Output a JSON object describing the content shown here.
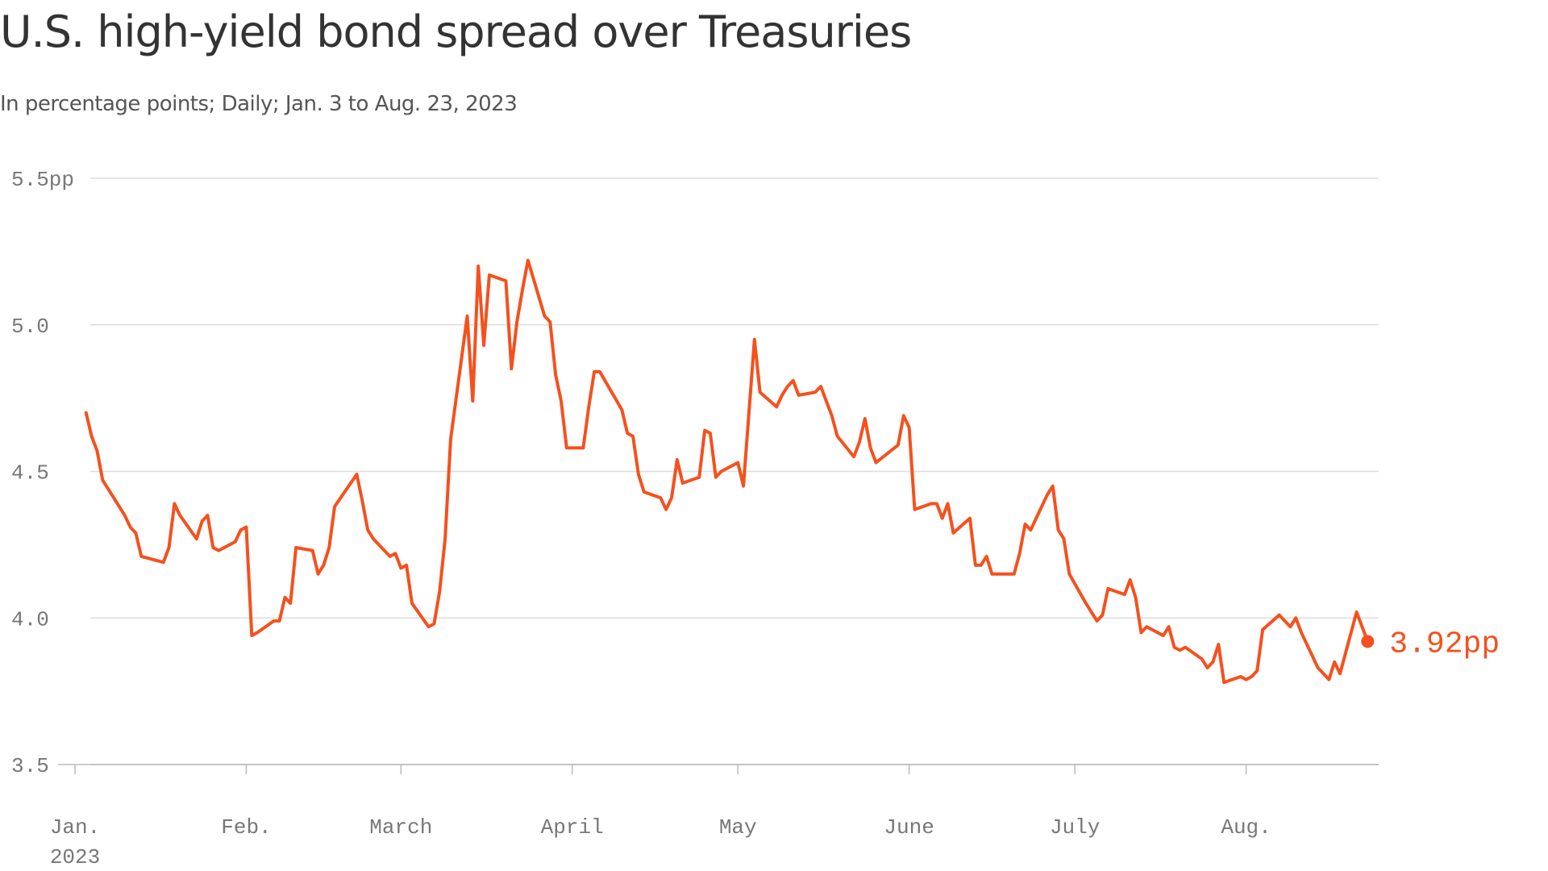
{
  "chart_data": {
    "type": "line",
    "title": "U.S. high-yield bond spread over Treasuries",
    "subtitle": "In percentage points; Daily; Jan. 3 to Aug. 23, 2023",
    "x": [
      "2023-01-03",
      "2023-01-04",
      "2023-01-05",
      "2023-01-06",
      "2023-01-09",
      "2023-01-10",
      "2023-01-11",
      "2023-01-12",
      "2023-01-13",
      "2023-01-17",
      "2023-01-18",
      "2023-01-19",
      "2023-01-20",
      "2023-01-23",
      "2023-01-24",
      "2023-01-25",
      "2023-01-26",
      "2023-01-27",
      "2023-01-30",
      "2023-01-31",
      "2023-02-01",
      "2023-02-02",
      "2023-02-03",
      "2023-02-06",
      "2023-02-07",
      "2023-02-08",
      "2023-02-09",
      "2023-02-10",
      "2023-02-13",
      "2023-02-14",
      "2023-02-15",
      "2023-02-16",
      "2023-02-17",
      "2023-02-21",
      "2023-02-22",
      "2023-02-23",
      "2023-02-24",
      "2023-02-27",
      "2023-02-28",
      "2023-03-01",
      "2023-03-02",
      "2023-03-03",
      "2023-03-06",
      "2023-03-07",
      "2023-03-08",
      "2023-03-09",
      "2023-03-10",
      "2023-03-13",
      "2023-03-14",
      "2023-03-15",
      "2023-03-16",
      "2023-03-17",
      "2023-03-20",
      "2023-03-21",
      "2023-03-22",
      "2023-03-23",
      "2023-03-24",
      "2023-03-27",
      "2023-03-28",
      "2023-03-29",
      "2023-03-30",
      "2023-03-31",
      "2023-04-03",
      "2023-04-04",
      "2023-04-05",
      "2023-04-06",
      "2023-04-10",
      "2023-04-11",
      "2023-04-12",
      "2023-04-13",
      "2023-04-14",
      "2023-04-17",
      "2023-04-18",
      "2023-04-19",
      "2023-04-20",
      "2023-04-21",
      "2023-04-24",
      "2023-04-25",
      "2023-04-26",
      "2023-04-27",
      "2023-04-28",
      "2023-05-01",
      "2023-05-02",
      "2023-05-03",
      "2023-05-04",
      "2023-05-05",
      "2023-05-08",
      "2023-05-09",
      "2023-05-10",
      "2023-05-11",
      "2023-05-12",
      "2023-05-15",
      "2023-05-16",
      "2023-05-17",
      "2023-05-18",
      "2023-05-19",
      "2023-05-22",
      "2023-05-23",
      "2023-05-24",
      "2023-05-25",
      "2023-05-26",
      "2023-05-30",
      "2023-05-31",
      "2023-06-01",
      "2023-06-02",
      "2023-06-05",
      "2023-06-06",
      "2023-06-07",
      "2023-06-08",
      "2023-06-09",
      "2023-06-12",
      "2023-06-13",
      "2023-06-14",
      "2023-06-15",
      "2023-06-16",
      "2023-06-20",
      "2023-06-21",
      "2023-06-22",
      "2023-06-23",
      "2023-06-26",
      "2023-06-27",
      "2023-06-28",
      "2023-06-29",
      "2023-06-30",
      "2023-07-03",
      "2023-07-05",
      "2023-07-06",
      "2023-07-07",
      "2023-07-10",
      "2023-07-11",
      "2023-07-12",
      "2023-07-13",
      "2023-07-14",
      "2023-07-17",
      "2023-07-18",
      "2023-07-19",
      "2023-07-20",
      "2023-07-21",
      "2023-07-24",
      "2023-07-25",
      "2023-07-26",
      "2023-07-27",
      "2023-07-28",
      "2023-07-31",
      "2023-08-01",
      "2023-08-02",
      "2023-08-03",
      "2023-08-04",
      "2023-08-07",
      "2023-08-08",
      "2023-08-09",
      "2023-08-10",
      "2023-08-11",
      "2023-08-14",
      "2023-08-15",
      "2023-08-16",
      "2023-08-17",
      "2023-08-18",
      "2023-08-21",
      "2023-08-22",
      "2023-08-23"
    ],
    "series": [
      {
        "color": "#f4511e",
        "values": [
          4.7,
          4.62,
          4.57,
          4.47,
          4.38,
          4.35,
          4.31,
          4.29,
          4.21,
          4.19,
          4.24,
          4.39,
          4.35,
          4.27,
          4.33,
          4.35,
          4.24,
          4.23,
          4.26,
          4.3,
          4.31,
          3.94,
          3.95,
          3.99,
          3.99,
          4.07,
          4.05,
          4.24,
          4.23,
          4.15,
          4.18,
          4.24,
          4.38,
          4.49,
          4.4,
          4.3,
          4.27,
          4.21,
          4.22,
          4.17,
          4.18,
          4.05,
          3.97,
          3.98,
          4.09,
          4.27,
          4.61,
          5.03,
          4.74,
          5.2,
          4.93,
          5.17,
          5.15,
          4.85,
          5.01,
          5.12,
          5.22,
          5.03,
          5.01,
          4.83,
          4.74,
          4.58,
          4.58,
          4.72,
          4.84,
          4.84,
          4.71,
          4.63,
          4.62,
          4.49,
          4.43,
          4.41,
          4.37,
          4.41,
          4.54,
          4.46,
          4.48,
          4.64,
          4.63,
          4.48,
          4.5,
          4.53,
          4.45,
          4.7,
          4.95,
          4.77,
          4.72,
          4.76,
          4.79,
          4.81,
          4.76,
          4.77,
          4.79,
          4.74,
          4.69,
          4.62,
          4.55,
          4.6,
          4.68,
          4.58,
          4.53,
          4.59,
          4.69,
          4.65,
          4.37,
          4.39,
          4.39,
          4.34,
          4.39,
          4.29,
          4.34,
          4.18,
          4.18,
          4.21,
          4.15,
          4.15,
          4.22,
          4.32,
          4.3,
          4.42,
          4.45,
          4.3,
          4.27,
          4.15,
          4.05,
          3.99,
          4.01,
          4.1,
          4.08,
          4.13,
          4.07,
          3.95,
          3.97,
          3.94,
          3.97,
          3.9,
          3.89,
          3.9,
          3.86,
          3.83,
          3.85,
          3.91,
          3.78,
          3.8,
          3.79,
          3.8,
          3.82,
          3.96,
          4.01,
          3.99,
          3.97,
          4.0,
          3.95,
          3.83,
          3.81,
          3.79,
          3.85,
          3.81,
          4.02,
          3.97,
          3.92
        ],
        "value_labels": [
          null,
          null,
          null,
          null,
          null,
          null,
          null,
          null,
          null,
          null,
          null,
          null,
          null,
          null,
          null,
          null,
          null,
          null,
          null,
          null,
          null,
          null,
          null,
          null,
          null,
          null,
          null,
          null,
          null,
          null,
          null,
          null,
          null,
          null,
          null,
          null,
          null,
          null,
          null,
          null,
          null,
          null,
          null,
          null,
          null,
          null,
          null,
          null,
          null,
          null,
          null,
          null,
          null,
          null,
          null,
          null,
          null,
          null,
          null,
          null,
          null,
          null,
          null,
          null,
          null,
          null,
          null,
          null,
          null,
          null,
          null,
          null,
          null,
          null,
          null,
          null,
          null,
          null,
          null,
          null,
          null,
          null,
          null,
          null,
          null,
          null,
          null,
          null,
          null,
          null,
          null,
          null,
          null,
          null,
          null,
          null,
          null,
          null,
          null,
          null,
          null,
          null,
          null,
          null,
          null,
          null,
          null,
          null,
          null,
          null,
          null,
          null,
          null,
          null,
          null,
          null,
          null,
          null,
          null,
          null,
          null,
          null,
          null,
          null,
          null,
          null,
          null,
          null,
          null,
          null,
          null,
          null,
          null,
          null,
          null,
          null,
          null,
          null,
          null,
          null,
          null,
          null,
          null,
          null,
          null,
          null,
          null,
          null,
          null,
          null,
          null,
          null,
          null,
          null,
          null,
          null,
          null,
          null,
          null,
          null,
          "3.92pp"
        ]
      }
    ],
    "xlim": [
      "2022-12-29",
      "2023-08-25"
    ],
    "xticks": [
      {
        "value": "2023-01-01",
        "label": "Jan."
      },
      {
        "value": "2023-02-01",
        "label": "Feb."
      },
      {
        "value": "2023-03-01",
        "label": "March"
      },
      {
        "value": "2023-04-01",
        "label": "April"
      },
      {
        "value": "2023-05-01",
        "label": "May"
      },
      {
        "value": "2023-06-01",
        "label": "June"
      },
      {
        "value": "2023-07-01",
        "label": "July"
      },
      {
        "value": "2023-08-01",
        "label": "Aug."
      }
    ],
    "x_tick_year": "2023",
    "ylim": [
      3.5,
      5.5
    ],
    "yticks": [
      3.5,
      {
        "value": 4,
        "label": "4.0"
      },
      4.5,
      {
        "value": 5,
        "label": "5.0"
      },
      {
        "value": 5.5,
        "label": "5.5pp"
      }
    ],
    "grid": true
  }
}
